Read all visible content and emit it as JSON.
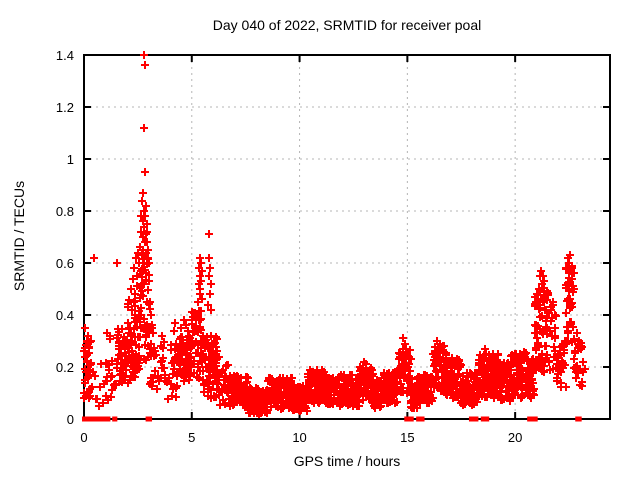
{
  "chart_data": {
    "type": "scatter",
    "title": "Day 040 of 2022, SRMTID for receiver poal",
    "xlabel": "GPS time / hours",
    "ylabel": "SRMTID / TECUs",
    "xlim": [
      0,
      24.4
    ],
    "ylim": [
      0,
      1.4
    ],
    "xticks": [
      0,
      5,
      10,
      15,
      20
    ],
    "xtick_labels": [
      "0",
      "5",
      "10",
      "15",
      "20"
    ],
    "yticks": [
      0,
      0.2,
      0.4,
      0.6,
      0.8,
      1,
      1.2,
      1.4
    ],
    "ytick_labels": [
      "0",
      "0.2",
      "0.4",
      "0.6",
      "0.8",
      "1",
      "1.2",
      "1.4"
    ],
    "grid": true,
    "legend_position": "none",
    "axis_color": "#000000",
    "grid_color": "#b4b4b4",
    "marker": {
      "shape": "plus",
      "color": "#ff0000",
      "size": 8,
      "stroke_width": 2
    },
    "points": [
      [
        0.05,
        0.35
      ],
      [
        0.12,
        0.3
      ],
      [
        0.2,
        0.32
      ],
      [
        0.46,
        0.62
      ],
      [
        1.05,
        0.33
      ],
      [
        1.53,
        0.6
      ],
      [
        2.18,
        0.5
      ],
      [
        2.22,
        0.42
      ],
      [
        2.26,
        0.54
      ],
      [
        2.3,
        0.45
      ],
      [
        2.34,
        0.58
      ],
      [
        2.38,
        0.48
      ],
      [
        2.42,
        0.62
      ],
      [
        2.46,
        0.55
      ],
      [
        2.5,
        0.64
      ],
      [
        2.55,
        0.6
      ],
      [
        2.6,
        0.66
      ],
      [
        2.63,
        0.72
      ],
      [
        2.66,
        0.78
      ],
      [
        2.68,
        0.63
      ],
      [
        2.7,
        0.84
      ],
      [
        2.72,
        0.7
      ],
      [
        2.74,
        0.76
      ],
      [
        2.75,
        0.87
      ],
      [
        2.76,
        0.65
      ],
      [
        2.78,
        0.8
      ],
      [
        2.78,
        1.12
      ],
      [
        2.8,
        0.74
      ],
      [
        2.8,
        1.4
      ],
      [
        2.82,
        0.68
      ],
      [
        2.82,
        1.36
      ],
      [
        2.84,
        0.78
      ],
      [
        2.85,
        0.95
      ],
      [
        2.86,
        0.71
      ],
      [
        2.88,
        0.82
      ],
      [
        2.88,
        0.64
      ],
      [
        2.9,
        0.75
      ],
      [
        2.92,
        0.68
      ],
      [
        2.94,
        0.72
      ],
      [
        2.96,
        0.65
      ],
      [
        2.98,
        0.62
      ],
      [
        3.02,
        0.6
      ],
      [
        3.05,
        0.45
      ],
      [
        3.1,
        0.4
      ],
      [
        3.15,
        0.36
      ],
      [
        3.2,
        0.33
      ],
      [
        3.58,
        0.28
      ],
      [
        3.62,
        0.32
      ],
      [
        4.18,
        0.34
      ],
      [
        4.22,
        0.37
      ],
      [
        4.52,
        0.35
      ],
      [
        4.62,
        0.38
      ],
      [
        4.72,
        0.36
      ],
      [
        4.82,
        0.34
      ],
      [
        4.9,
        0.31
      ],
      [
        5.3,
        0.45
      ],
      [
        5.32,
        0.52
      ],
      [
        5.34,
        0.58
      ],
      [
        5.36,
        0.62
      ],
      [
        5.36,
        0.48
      ],
      [
        5.38,
        0.55
      ],
      [
        5.4,
        0.5
      ],
      [
        5.42,
        0.6
      ],
      [
        5.44,
        0.53
      ],
      [
        5.46,
        0.46
      ],
      [
        5.48,
        0.57
      ],
      [
        5.76,
        0.44
      ],
      [
        5.78,
        0.71
      ],
      [
        5.8,
        0.62
      ],
      [
        5.82,
        0.55
      ],
      [
        5.84,
        0.48
      ],
      [
        5.86,
        0.58
      ],
      [
        5.88,
        0.52
      ],
      [
        5.9,
        0.42
      ],
      [
        6.15,
        0.26
      ],
      [
        6.25,
        0.24
      ],
      [
        13.0,
        0.22
      ],
      [
        13.1,
        0.21
      ],
      [
        14.78,
        0.31
      ],
      [
        14.88,
        0.29
      ],
      [
        14.95,
        0.27
      ],
      [
        16.38,
        0.3
      ],
      [
        16.52,
        0.29
      ],
      [
        16.7,
        0.28
      ],
      [
        18.6,
        0.27
      ],
      [
        20.92,
        0.33
      ],
      [
        20.97,
        0.36
      ],
      [
        21.08,
        0.46
      ],
      [
        21.12,
        0.5
      ],
      [
        21.16,
        0.55
      ],
      [
        21.2,
        0.57
      ],
      [
        21.24,
        0.52
      ],
      [
        21.28,
        0.55
      ],
      [
        21.32,
        0.49
      ],
      [
        21.36,
        0.53
      ],
      [
        21.4,
        0.47
      ],
      [
        21.65,
        0.42
      ],
      [
        21.75,
        0.45
      ],
      [
        21.85,
        0.4
      ],
      [
        22.42,
        0.58
      ],
      [
        22.45,
        0.62
      ],
      [
        22.48,
        0.56
      ],
      [
        22.52,
        0.6
      ],
      [
        22.55,
        0.63
      ],
      [
        22.58,
        0.57
      ],
      [
        22.62,
        0.59
      ],
      [
        22.66,
        0.54
      ],
      [
        22.85,
        0.33
      ],
      [
        22.95,
        0.3
      ],
      [
        23.05,
        0.27
      ],
      [
        23.15,
        0.22
      ]
    ],
    "band_segments": [
      [
        0.0,
        0.35,
        0.08,
        0.3,
        0.03,
        3
      ],
      [
        0.38,
        0.95,
        0.04,
        0.22,
        0.06,
        1
      ],
      [
        1.0,
        1.3,
        0.06,
        0.32,
        0.04,
        2
      ],
      [
        1.32,
        1.55,
        0.05,
        0.16,
        0.06,
        1
      ],
      [
        1.55,
        2.05,
        0.1,
        0.35,
        0.03,
        3
      ],
      [
        2.05,
        2.35,
        0.14,
        0.46,
        0.03,
        3
      ],
      [
        2.35,
        2.65,
        0.18,
        0.56,
        0.03,
        3
      ],
      [
        2.65,
        3.05,
        0.22,
        0.62,
        0.03,
        3
      ],
      [
        3.05,
        3.35,
        0.12,
        0.36,
        0.04,
        2
      ],
      [
        3.38,
        3.55,
        0.08,
        0.18,
        0.06,
        1
      ],
      [
        3.55,
        3.75,
        0.1,
        0.3,
        0.05,
        2
      ],
      [
        3.78,
        4.05,
        0.05,
        0.2,
        0.06,
        1
      ],
      [
        4.05,
        4.35,
        0.08,
        0.3,
        0.04,
        2
      ],
      [
        4.38,
        5.0,
        0.14,
        0.32,
        0.03,
        3
      ],
      [
        5.0,
        5.5,
        0.15,
        0.42,
        0.03,
        3
      ],
      [
        5.5,
        6.2,
        0.08,
        0.32,
        0.03,
        3
      ],
      [
        6.2,
        6.7,
        0.05,
        0.22,
        0.04,
        2
      ],
      [
        6.7,
        7.6,
        0.05,
        0.17,
        0.03,
        3
      ],
      [
        7.6,
        8.5,
        0.02,
        0.12,
        0.03,
        3
      ],
      [
        8.5,
        9.7,
        0.04,
        0.16,
        0.03,
        3
      ],
      [
        9.7,
        10.4,
        0.03,
        0.13,
        0.03,
        3
      ],
      [
        10.4,
        11.3,
        0.06,
        0.19,
        0.03,
        3
      ],
      [
        11.3,
        12.8,
        0.05,
        0.17,
        0.03,
        3
      ],
      [
        12.8,
        13.4,
        0.07,
        0.2,
        0.03,
        3
      ],
      [
        13.4,
        13.9,
        0.04,
        0.15,
        0.03,
        3
      ],
      [
        13.9,
        14.55,
        0.06,
        0.18,
        0.03,
        3
      ],
      [
        14.55,
        15.15,
        0.1,
        0.27,
        0.03,
        3
      ],
      [
        15.15,
        15.45,
        0.04,
        0.14,
        0.03,
        3
      ],
      [
        15.45,
        16.2,
        0.06,
        0.17,
        0.03,
        3
      ],
      [
        16.2,
        16.8,
        0.1,
        0.28,
        0.03,
        3
      ],
      [
        16.8,
        17.5,
        0.08,
        0.24,
        0.03,
        3
      ],
      [
        17.5,
        18.3,
        0.05,
        0.18,
        0.03,
        3
      ],
      [
        18.3,
        19.2,
        0.08,
        0.25,
        0.03,
        3
      ],
      [
        19.2,
        19.8,
        0.07,
        0.22,
        0.03,
        3
      ],
      [
        19.8,
        20.9,
        0.08,
        0.26,
        0.03,
        3
      ],
      [
        20.9,
        21.55,
        0.18,
        0.52,
        0.03,
        3
      ],
      [
        21.55,
        21.95,
        0.15,
        0.45,
        0.04,
        2
      ],
      [
        21.95,
        22.35,
        0.12,
        0.3,
        0.04,
        2
      ],
      [
        22.35,
        22.72,
        0.28,
        0.58,
        0.03,
        3
      ],
      [
        22.72,
        23.1,
        0.12,
        0.3,
        0.04,
        2
      ],
      [
        23.1,
        23.22,
        0.1,
        0.2,
        0.06,
        1
      ]
    ],
    "zero_segments": [
      [
        0.0,
        0.75
      ],
      [
        0.88,
        0.97
      ],
      [
        1.05,
        1.18
      ],
      [
        1.4,
        1.5
      ],
      [
        2.95,
        2.99
      ],
      [
        3.07,
        3.11
      ],
      [
        14.95,
        15.25
      ],
      [
        15.5,
        15.58
      ],
      [
        15.7,
        15.75
      ],
      [
        17.95,
        18.25
      ],
      [
        18.5,
        18.75
      ],
      [
        20.65,
        21.0
      ],
      [
        22.88,
        22.93
      ],
      [
        23.0,
        23.04
      ]
    ]
  }
}
